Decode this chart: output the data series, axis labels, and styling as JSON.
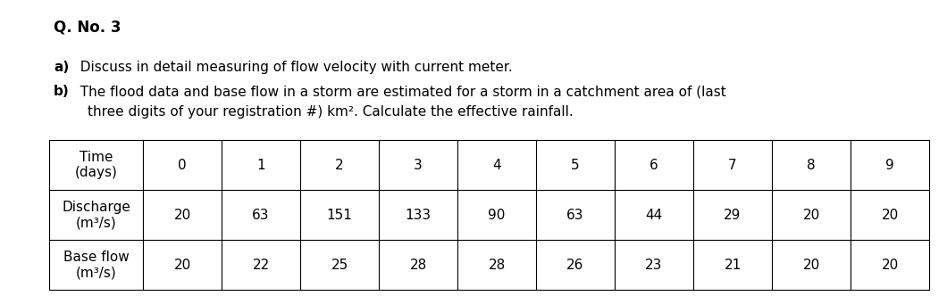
{
  "title": "Q. No. 3",
  "part_a_bold": "a)",
  "part_a_text": "  Discuss in detail measuring of flow velocity with current meter.",
  "part_b_bold": "b)",
  "part_b_text1": "  The flood data and base flow in a storm are estimated for a storm in a catchment area of (last",
  "part_b_text2": "three digits of your registration #) km². Calculate the effective rainfall.",
  "table": {
    "col_headers": [
      "0",
      "1",
      "2",
      "3",
      "4",
      "5",
      "6",
      "7",
      "8",
      "9"
    ],
    "row1_label_line1": "Discharge",
    "row1_label_line2": "(m³/s)",
    "row1_data": [
      "20",
      "63",
      "151",
      "133",
      "90",
      "63",
      "44",
      "29",
      "20",
      "20"
    ],
    "row2_label_line1": "Base flow",
    "row2_label_line2": "(m³/s)",
    "row2_data": [
      "20",
      "22",
      "25",
      "28",
      "28",
      "26",
      "23",
      "21",
      "20",
      "20"
    ]
  },
  "background_color": "#ffffff",
  "text_color": "#000000",
  "title_fontsize": 12,
  "body_fontsize": 11,
  "table_fontsize": 11
}
